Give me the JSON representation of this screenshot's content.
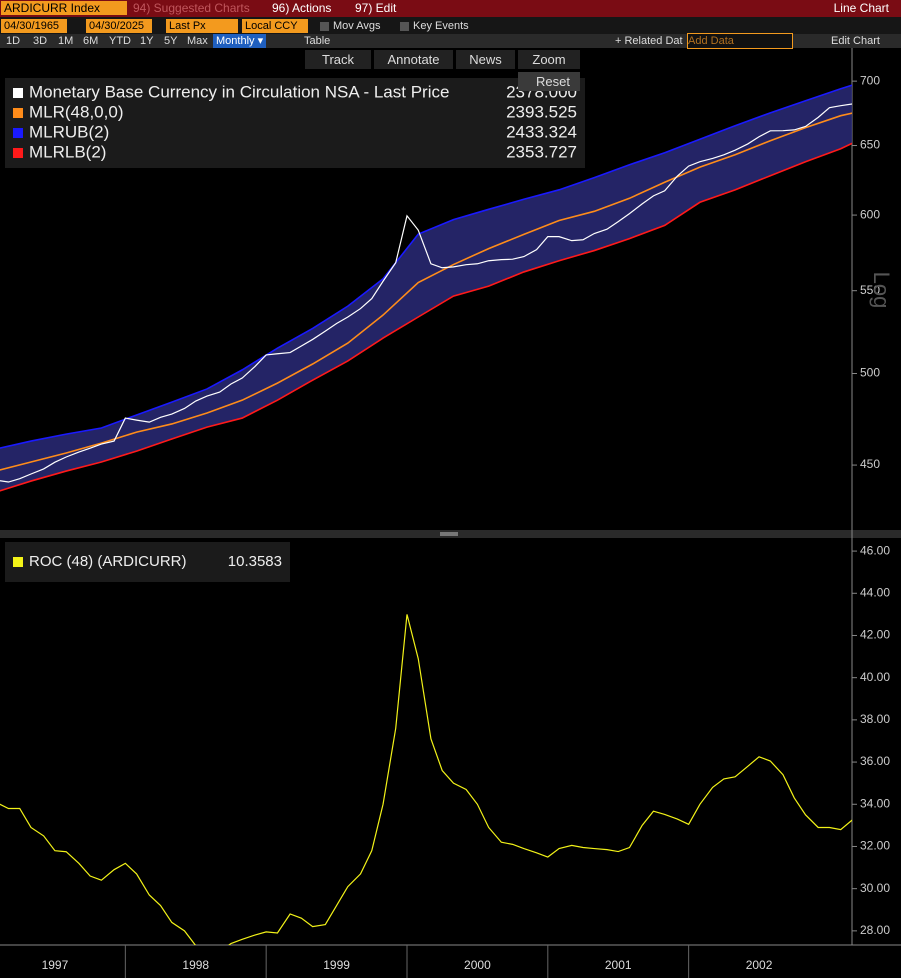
{
  "toolbar": {
    "ticker": "ARDICURR Index",
    "suggested": "94) Suggested Charts",
    "actions": "96) Actions",
    "edit": "97) Edit",
    "chart_type": "Line Chart",
    "start": "04/30/1965",
    "end": "04/30/2025",
    "field": "Last Px",
    "currency": "Local CCY",
    "mov_avgs": "Mov Avgs",
    "key_events": "Key Events",
    "periods": [
      "1D",
      "3D",
      "1M",
      "6M",
      "YTD",
      "1Y",
      "5Y",
      "Max"
    ],
    "frequency": "Monthly ▾",
    "table": "Table",
    "related": "+ Related Dat",
    "add_data": "Add Data",
    "edit_chart": "Edit Chart",
    "tools": [
      "Track",
      "Annotate",
      "News",
      "Zoom"
    ],
    "reset": "Reset"
  },
  "chart_data": [
    {
      "type": "line",
      "log_scale": true,
      "axis_label": "Log",
      "xlim": [
        1997.11,
        2003.16
      ],
      "ylim": [
        417.6,
        727.2
      ],
      "yticks": [
        450,
        500,
        550,
        600,
        650,
        700
      ],
      "band_color": "#2a2a78",
      "series": [
        {
          "name": "Monetary Base Currency in Circulation NSA - Last Price",
          "color": "#ffffff",
          "last_value": "2378.000",
          "x": [
            1997.08,
            1997.17,
            1997.25,
            1997.33,
            1997.42,
            1997.5,
            1997.58,
            1997.67,
            1997.75,
            1997.83,
            1997.92,
            1998,
            1998.08,
            1998.17,
            1998.25,
            1998.33,
            1998.42,
            1998.5,
            1998.58,
            1998.67,
            1998.75,
            1998.83,
            1998.92,
            1999,
            1999.08,
            1999.17,
            1999.25,
            1999.33,
            1999.42,
            1999.5,
            1999.58,
            1999.67,
            1999.75,
            1999.83,
            1999.92,
            2000,
            2000.08,
            2000.17,
            2000.25,
            2000.33,
            2000.42,
            2000.5,
            2000.58,
            2000.67,
            2000.75,
            2000.83,
            2000.92,
            2001,
            2001.08,
            2001.17,
            2001.25,
            2001.33,
            2001.42,
            2001.5,
            2001.58,
            2001.67,
            2001.75,
            2001.83,
            2001.92,
            2002,
            2002.08,
            2002.17,
            2002.25,
            2002.33,
            2002.42,
            2002.5,
            2002.58,
            2002.67,
            2002.75,
            2002.83,
            2002.92,
            2003,
            2003.08,
            2003.17
          ],
          "values": [
            442.3,
            441.3,
            443,
            445.4,
            448,
            451.5,
            454.2,
            456.8,
            458.8,
            461,
            462.6,
            475,
            473.9,
            472.8,
            475.4,
            477.2,
            480.3,
            484.4,
            487.2,
            489.4,
            494,
            497.4,
            504,
            510.8,
            511.5,
            512.2,
            516.1,
            520,
            525,
            529.6,
            533.6,
            538.8,
            545,
            556,
            568,
            599.5,
            589.7,
            567.3,
            564.7,
            565.3,
            566.7,
            567.3,
            569.3,
            570,
            570.3,
            572,
            576.6,
            585.3,
            585.3,
            582.6,
            583.2,
            587.4,
            590.3,
            595.5,
            601,
            607.8,
            613.4,
            617,
            627.6,
            634.8,
            638,
            640.4,
            643.1,
            646.5,
            651.2,
            656.6,
            661.1,
            661.2,
            661.8,
            664.4,
            671.4,
            678.9,
            680.5,
            682
          ]
        },
        {
          "name": "MLR(48,0,0)",
          "color": "#ff8c1a",
          "last_value": "2393.525",
          "x": [
            1997.08,
            1997.33,
            1997.58,
            1997.83,
            1998.08,
            1998.33,
            1998.58,
            1998.83,
            1999.08,
            1999.33,
            1999.58,
            1999.83,
            2000.08,
            2000.33,
            2000.58,
            2000.83,
            2001.08,
            2001.33,
            2001.58,
            2001.83,
            2002.08,
            2002.33,
            2002.58,
            2002.83,
            2003.08,
            2003.17
          ],
          "values": [
            446.9,
            451.6,
            456.3,
            461.5,
            467.4,
            471.8,
            477.8,
            484.9,
            494.5,
            505.5,
            517.8,
            534.8,
            555.2,
            566.8,
            577.3,
            586.8,
            596.3,
            602.6,
            611.7,
            623.1,
            634,
            643.1,
            653.6,
            663.5,
            672.7,
            674.9
          ]
        },
        {
          "name": "MLRUB(2)",
          "color": "#1a1aff",
          "last_value": "2433.324",
          "x": [
            1997.08,
            1997.33,
            1997.58,
            1997.83,
            1998.08,
            1998.33,
            1998.58,
            1998.83,
            1999.08,
            1999.33,
            1999.58,
            1999.83,
            2000.08,
            2000.33,
            2000.58,
            2000.83,
            2001.08,
            2001.33,
            2001.58,
            2001.83,
            2002.08,
            2002.33,
            2002.58,
            2002.83,
            2003.08,
            2003.17
          ],
          "values": [
            458.4,
            462.6,
            466.3,
            469.6,
            476.7,
            483.8,
            491.2,
            502.1,
            514.8,
            526.6,
            540.3,
            557.6,
            587,
            596.9,
            604,
            611,
            617.7,
            626.4,
            635.8,
            644.6,
            654.7,
            665,
            674.9,
            684.4,
            693.9,
            697.1
          ]
        },
        {
          "name": "MLRLB(2)",
          "color": "#ff1a1a",
          "last_value": "2353.727",
          "x": [
            1997.08,
            1997.33,
            1997.58,
            1997.83,
            1998.08,
            1998.33,
            1998.58,
            1998.83,
            1999.08,
            1999.33,
            1999.58,
            1999.83,
            2000.08,
            2000.33,
            2000.58,
            2000.83,
            2001.08,
            2001.33,
            2001.58,
            2001.83,
            2002.08,
            2002.33,
            2002.58,
            2002.83,
            2003.08,
            2003.17
          ],
          "values": [
            436.2,
            441.8,
            446.9,
            451.6,
            457.3,
            463.7,
            470.1,
            475,
            484.9,
            496.2,
            507.3,
            520.8,
            533.6,
            546.6,
            552.9,
            562,
            569.3,
            576,
            584,
            592.9,
            608.9,
            617.7,
            627.8,
            638,
            647.6,
            652.1
          ]
        }
      ]
    },
    {
      "type": "line",
      "xlim": [
        1997.11,
        2003.16
      ],
      "ylim": [
        27.33,
        46.62
      ],
      "yticks": [
        {
          "value": 28,
          "label": "28.00"
        },
        {
          "value": 30,
          "label": "30.00"
        },
        {
          "value": 32,
          "label": "32.00"
        },
        {
          "value": 34,
          "label": "34.00"
        },
        {
          "value": 36,
          "label": "36.00"
        },
        {
          "value": 38,
          "label": "38.00"
        },
        {
          "value": 40,
          "label": "40.00"
        },
        {
          "value": 42,
          "label": "42.00"
        },
        {
          "value": 44,
          "label": "44.00"
        },
        {
          "value": 46,
          "label": "46.00"
        }
      ],
      "xticks": [
        1997,
        1998,
        1999,
        2000,
        2001,
        2002
      ],
      "series": [
        {
          "name": "ROC (48) (ARDICURR)",
          "color": "#f2f218",
          "last_value": "10.3583",
          "x": [
            1997.08,
            1997.17,
            1997.25,
            1997.33,
            1997.42,
            1997.5,
            1997.58,
            1997.67,
            1997.75,
            1997.83,
            1997.92,
            1998,
            1998.08,
            1998.17,
            1998.25,
            1998.33,
            1998.42,
            1998.5,
            1998.58,
            1998.67,
            1998.75,
            1998.83,
            1998.92,
            1999,
            1999.08,
            1999.17,
            1999.25,
            1999.33,
            1999.42,
            1999.5,
            1999.58,
            1999.67,
            1999.75,
            1999.83,
            1999.92,
            2000,
            2000.08,
            2000.17,
            2000.25,
            2000.33,
            2000.42,
            2000.5,
            2000.58,
            2000.67,
            2000.75,
            2000.83,
            2000.92,
            2001,
            2001.08,
            2001.17,
            2001.25,
            2001.33,
            2001.42,
            2001.5,
            2001.58,
            2001.67,
            2001.75,
            2001.83,
            2001.92,
            2002,
            2002.08,
            2002.17,
            2002.25,
            2002.33,
            2002.42,
            2002.5,
            2002.58,
            2002.67,
            2002.75,
            2002.83,
            2002.92,
            2003,
            2003.08,
            2003.17
          ],
          "values": [
            34.1,
            33.8,
            33.8,
            32.9,
            32.5,
            31.8,
            31.75,
            31.2,
            30.6,
            30.4,
            30.9,
            31.2,
            30.7,
            29.7,
            29.2,
            28.4,
            28.0,
            27.3,
            27.0,
            27.0,
            27.4,
            27.6,
            27.8,
            27.95,
            27.9,
            28.8,
            28.6,
            28.2,
            28.3,
            29.2,
            30.1,
            30.7,
            31.8,
            34.0,
            37.6,
            43.0,
            40.9,
            37.1,
            35.6,
            35.0,
            34.7,
            34.0,
            32.9,
            32.2,
            32.1,
            31.9,
            31.7,
            31.5,
            31.9,
            32.05,
            31.95,
            31.9,
            31.85,
            31.76,
            31.95,
            33.0,
            33.67,
            33.52,
            33.3,
            33.05,
            34.0,
            34.8,
            35.2,
            35.3,
            35.8,
            36.25,
            36.05,
            35.4,
            34.3,
            33.5,
            32.9,
            32.9,
            32.8,
            33.3
          ]
        }
      ]
    }
  ]
}
